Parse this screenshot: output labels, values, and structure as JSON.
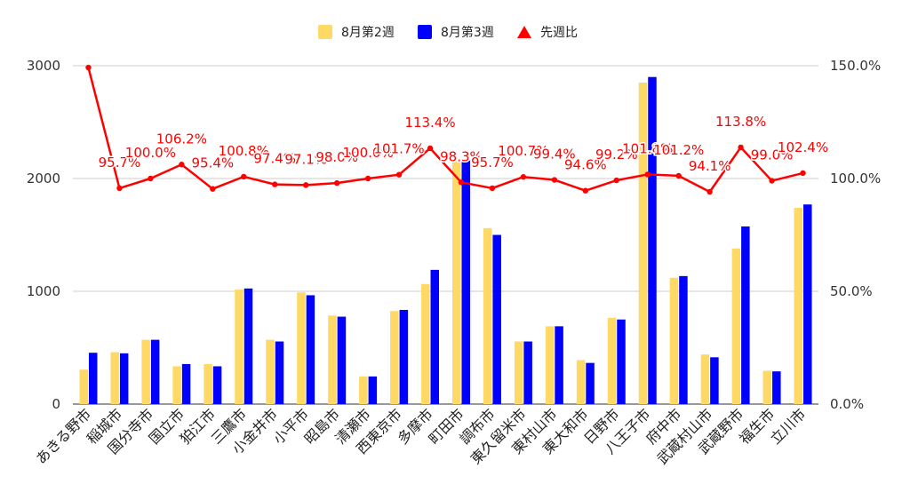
{
  "chart_data": {
    "type": "bar",
    "categories": [
      "あきる野市",
      "稲城市",
      "国分寺市",
      "国立市",
      "狛江市",
      "三鷹市",
      "小金井市",
      "小平市",
      "昭島市",
      "清瀬市",
      "西東京市",
      "多摩市",
      "町田市",
      "調布市",
      "東久留米市",
      "東村山市",
      "東大和市",
      "日野市",
      "八王子市",
      "府中市",
      "武蔵村山市",
      "武蔵野市",
      "福生市",
      "立川市"
    ],
    "series": [
      {
        "name": "8月第2週",
        "axis": "left",
        "color": "#ffd966",
        "values": [
          305,
          460,
          570,
          335,
          355,
          1015,
          570,
          990,
          785,
          245,
          825,
          1065,
          2160,
          1560,
          555,
          690,
          390,
          765,
          2850,
          1120,
          440,
          1380,
          295,
          1740
        ]
      },
      {
        "name": "8月第3週",
        "axis": "left",
        "color": "#0000ff",
        "values": [
          455,
          450,
          570,
          355,
          335,
          1025,
          555,
          965,
          775,
          245,
          835,
          1190,
          2160,
          1500,
          555,
          690,
          365,
          750,
          2900,
          1135,
          415,
          1575,
          290,
          1770
        ]
      }
    ],
    "line_series": {
      "name": "先週比",
      "axis": "right",
      "color": "#ff0000",
      "marker": "triangle",
      "values": [
        149.2,
        95.7,
        100.0,
        106.2,
        95.4,
        100.8,
        97.4,
        97.1,
        98.0,
        100.0,
        101.7,
        113.4,
        98.3,
        95.7,
        100.7,
        99.4,
        94.6,
        99.2,
        101.8,
        101.2,
        94.1,
        113.8,
        99.0,
        102.4
      ],
      "labels": [
        "",
        "95.7%",
        "100.0%",
        "106.2%",
        "95.4%",
        "100.8%",
        "97.4%",
        "97.1%",
        "98.0%",
        "100.0%",
        "101.7%",
        "113.4%",
        "98.3%",
        "95.7%",
        "100.7%",
        "99.4%",
        "94.6%",
        "99.2%",
        "101.8%",
        "101.2%",
        "94.1%",
        "113.8%",
        "99.0%",
        "102.4%"
      ]
    },
    "y_left": {
      "min": 0,
      "max": 3000,
      "ticks": [
        0,
        1000,
        2000,
        3000
      ],
      "tick_labels": [
        "0",
        "1000",
        "2000",
        "3000"
      ]
    },
    "y_right": {
      "min": 0,
      "max": 150,
      "ticks": [
        0,
        50,
        100,
        150
      ],
      "tick_labels": [
        "0.0%",
        "50.0%",
        "100.0%",
        "150.0%"
      ]
    },
    "grid": true,
    "legend_position": "top-center",
    "legend": [
      {
        "label": "8月第2週",
        "color": "#ffd966",
        "icon": "square"
      },
      {
        "label": "8月第3週",
        "color": "#0000ff",
        "icon": "square"
      },
      {
        "label": "先週比",
        "color": "#ff0000",
        "icon": "triangle"
      }
    ]
  }
}
